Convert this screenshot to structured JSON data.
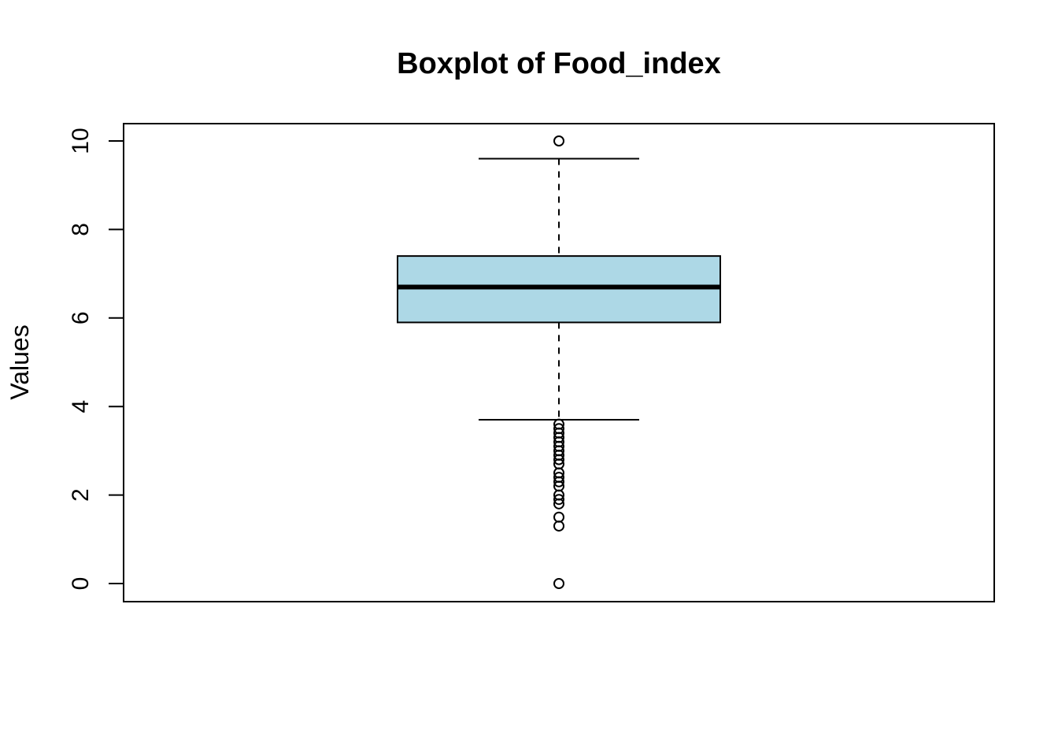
{
  "chart_data": {
    "type": "box",
    "title": "Boxplot of Food_index",
    "ylabel": "Values",
    "xlabel": "",
    "ylim": [
      0,
      10
    ],
    "y_ticks": [
      "0",
      "2",
      "4",
      "6",
      "8",
      "10"
    ],
    "y_tick_values": [
      0,
      2,
      4,
      6,
      8,
      10
    ],
    "grid": false,
    "series": [
      {
        "min_whisker": 3.7,
        "q1": 5.9,
        "median": 6.7,
        "q3": 7.4,
        "max_whisker": 9.6,
        "outliers": [
          10.0,
          3.6,
          3.5,
          3.4,
          3.3,
          3.2,
          3.1,
          3.0,
          2.9,
          2.8,
          2.7,
          2.5,
          2.4,
          2.3,
          2.2,
          2.0,
          1.9,
          1.8,
          1.5,
          1.3,
          0.0
        ]
      }
    ],
    "colors": {
      "box_fill": "#ADD8E6",
      "stroke": "#000000"
    }
  }
}
